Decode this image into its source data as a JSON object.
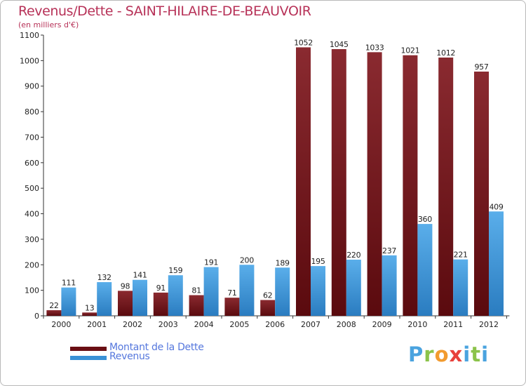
{
  "title": "Revenus/Dette - SAINT-HILAIRE-DE-BEAUVOIR",
  "subtitle": "(en milliers d'€)",
  "brand": "Proxiti",
  "colors": {
    "dette": "#7a1a1e",
    "revenus": "#3a91d6",
    "title": "#b73258",
    "legend_text": "#5577dd"
  },
  "chart_data": {
    "type": "bar",
    "categories": [
      "2000",
      "2001",
      "2002",
      "2003",
      "2004",
      "2005",
      "2006",
      "2007",
      "2008",
      "2009",
      "2010",
      "2011",
      "2012"
    ],
    "series": [
      {
        "name": "Montant de la Dette",
        "values": [
          22,
          13,
          98,
          91,
          81,
          71,
          62,
          1052,
          1045,
          1033,
          1021,
          1012,
          957
        ]
      },
      {
        "name": "Revenus",
        "values": [
          111,
          132,
          141,
          159,
          191,
          200,
          189,
          195,
          220,
          237,
          360,
          221,
          409
        ]
      }
    ],
    "ylim": [
      0,
      1100
    ],
    "yticks": [
      0,
      100,
      200,
      300,
      400,
      500,
      600,
      700,
      800,
      900,
      1000,
      1100
    ],
    "legend_position": "bottom-left",
    "grid": false
  }
}
